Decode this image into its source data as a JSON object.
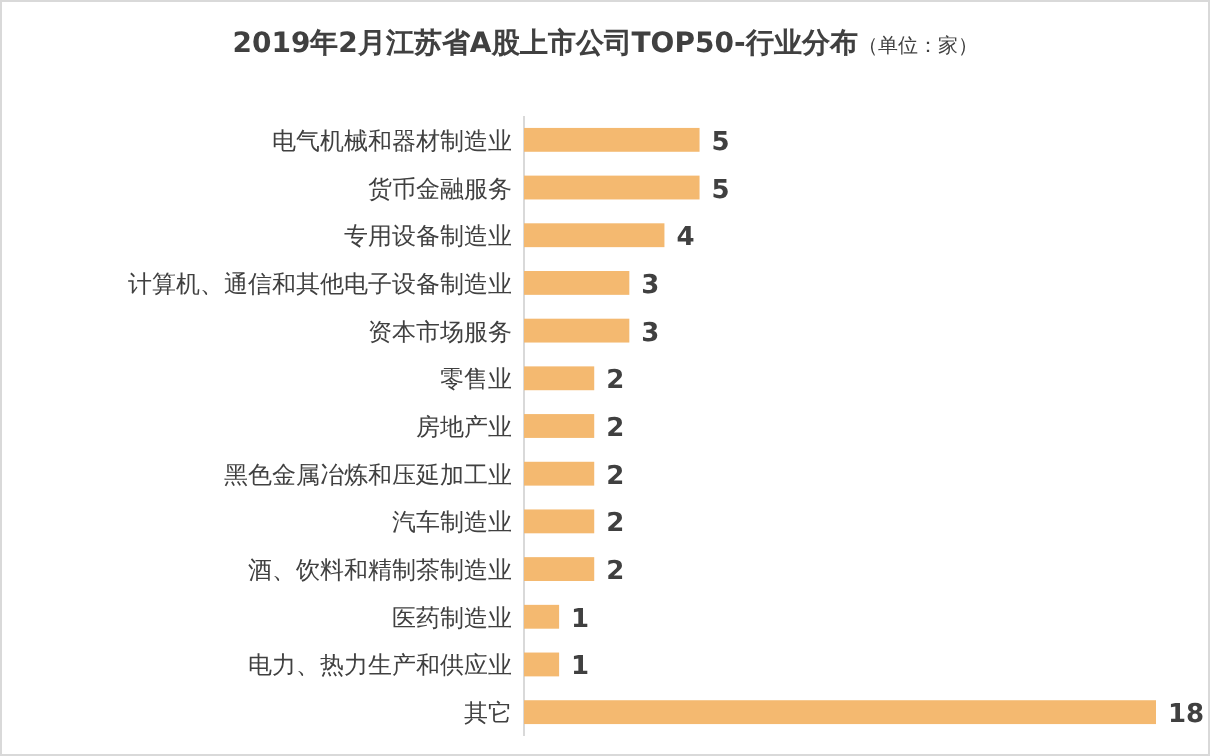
{
  "chart_data": {
    "type": "bar",
    "orientation": "horizontal",
    "title": "2019年2月江苏省A股上市公司TOP50-行业分布",
    "subtitle": "（单位：家）",
    "color": "#f4b970",
    "data_labels": true,
    "categories": [
      "电气机械和器材制造业",
      "货币金融服务",
      "专用设备制造业",
      "计算机、通信和其他电子设备制造业",
      "资本市场服务",
      "零售业",
      "房地产业",
      "黑色金属冶炼和压延加工业",
      "汽车制造业",
      "酒、饮料和精制茶制造业",
      "医药制造业",
      "电力、热力生产和供应业",
      "其它"
    ],
    "values": [
      5,
      5,
      4,
      3,
      3,
      2,
      2,
      2,
      2,
      2,
      1,
      1,
      18
    ]
  }
}
